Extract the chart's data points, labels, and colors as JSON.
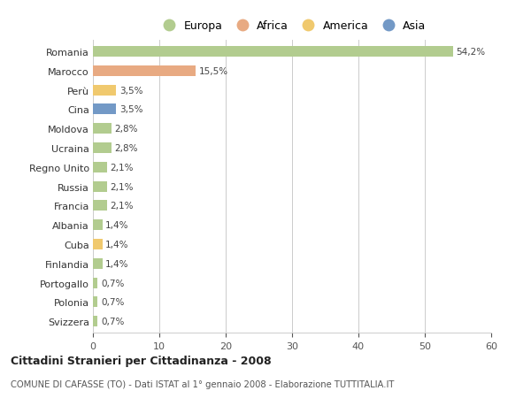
{
  "countries": [
    "Romania",
    "Marocco",
    "Perù",
    "Cina",
    "Moldova",
    "Ucraina",
    "Regno Unito",
    "Russia",
    "Francia",
    "Albania",
    "Cuba",
    "Finlandia",
    "Portogallo",
    "Polonia",
    "Svizzera"
  ],
  "values": [
    54.2,
    15.5,
    3.5,
    3.5,
    2.8,
    2.8,
    2.1,
    2.1,
    2.1,
    1.4,
    1.4,
    1.4,
    0.7,
    0.7,
    0.7
  ],
  "labels": [
    "54,2%",
    "15,5%",
    "3,5%",
    "3,5%",
    "2,8%",
    "2,8%",
    "2,1%",
    "2,1%",
    "2,1%",
    "1,4%",
    "1,4%",
    "1,4%",
    "0,7%",
    "0,7%",
    "0,7%"
  ],
  "continents": [
    "Europa",
    "Africa",
    "America",
    "Asia",
    "Europa",
    "Europa",
    "Europa",
    "Europa",
    "Europa",
    "Europa",
    "America",
    "Europa",
    "Europa",
    "Europa",
    "Europa"
  ],
  "colors": {
    "Europa": "#b2cc8f",
    "Africa": "#e8aa82",
    "America": "#f0c96e",
    "Asia": "#7399c6"
  },
  "legend_order": [
    "Europa",
    "Africa",
    "America",
    "Asia"
  ],
  "xlim": [
    0,
    60
  ],
  "xticks": [
    0,
    10,
    20,
    30,
    40,
    50,
    60
  ],
  "title": "Cittadini Stranieri per Cittadinanza - 2008",
  "subtitle": "COMUNE DI CAFASSE (TO) - Dati ISTAT al 1° gennaio 2008 - Elaborazione TUTTITALIA.IT",
  "background_color": "#ffffff",
  "grid_color": "#cccccc"
}
